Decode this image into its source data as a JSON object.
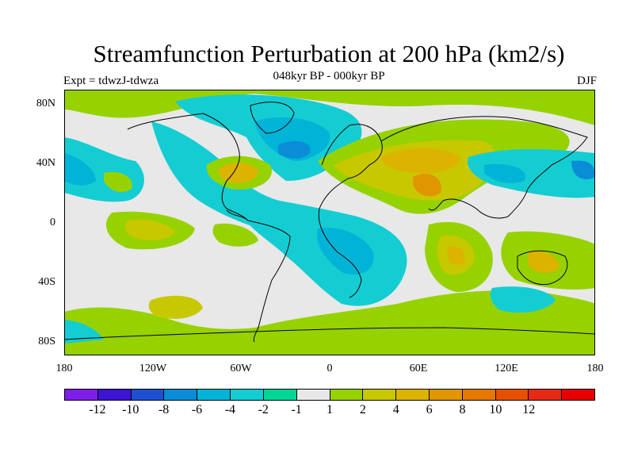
{
  "title": "Streamfunction Perturbation at 200 hPa (km2/s)",
  "subtitle": "048kyr BP - 000kyr BP",
  "left_label": "Expt = tdwzJ-tdwza",
  "right_label": "DJF",
  "lat_labels": [
    "80N",
    "40N",
    "0",
    "40S",
    "80S"
  ],
  "lon_labels": [
    "180",
    "120W",
    "60W",
    "0",
    "60E",
    "120E",
    "180"
  ],
  "colorbar": {
    "colors": [
      "#7f1ee6",
      "#3c14d2",
      "#1e50d2",
      "#0a8cd7",
      "#00b4d7",
      "#14cdd2",
      "#00d696",
      "#e8e8e8",
      "#96d200",
      "#c8c800",
      "#dcb400",
      "#e09600",
      "#e67800",
      "#e65000",
      "#e62814",
      "#e60000"
    ],
    "labels": [
      "-12",
      "-10",
      "-8",
      "-6",
      "-4",
      "-2",
      "-1",
      "1",
      "2",
      "4",
      "6",
      "8",
      "10",
      "12"
    ]
  },
  "colors": {
    "background_field": "#e8e8e8",
    "green": "#96d200",
    "teal": "#14cdd2",
    "blue": "#00b4d7",
    "yellow": "#c8c800",
    "orange": "#dcb400"
  }
}
